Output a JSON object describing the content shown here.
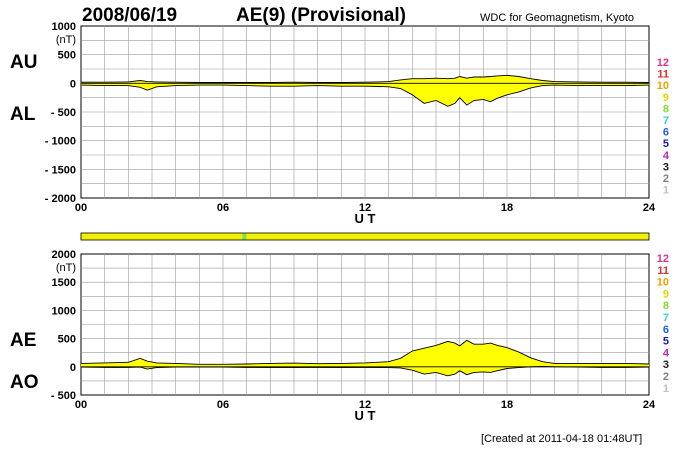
{
  "header": {
    "date": "2008/06/19",
    "title": "AE(9)  (Provisional)",
    "institution": "WDC for Geomagnetism, Kyoto"
  },
  "footer": {
    "created": "[Created at 2011-04-18 01:48UT]"
  },
  "colors": {
    "fill": "#ffff00",
    "stripe": "#f0f000",
    "stripe_marker": "#80e050",
    "grid": "#9a9a9a"
  },
  "chart_data": [
    {
      "type": "area",
      "name_labels": [
        "AU",
        "AL"
      ],
      "unit": "(nT)",
      "xlabel": "U T",
      "xlim": [
        0,
        24
      ],
      "x_ticks": [
        0,
        6,
        12,
        18,
        24
      ],
      "x_tick_labels": [
        "00",
        "06",
        "12",
        "18",
        "24"
      ],
      "x_minor_step": 1,
      "ylim": [
        -2000,
        1000
      ],
      "y_tick_labels": [
        {
          "value": 1000,
          "label": "1000"
        },
        {
          "value": 500,
          "label": "500"
        },
        {
          "value": 0,
          "label": "0"
        },
        {
          "value": -500,
          "label": "- 500"
        },
        {
          "value": -1000,
          "label": "- 1000"
        },
        {
          "value": -1500,
          "label": "- 1500"
        },
        {
          "value": -2000,
          "label": "- 2000"
        }
      ],
      "y_minor_step": 250,
      "grid": true,
      "x": [
        0,
        1,
        2,
        2.5,
        2.8,
        3.2,
        4,
        5,
        6,
        7,
        8,
        9,
        10,
        11,
        12,
        13,
        13.5,
        14,
        14.5,
        15,
        15.5,
        15.8,
        16,
        16.3,
        16.6,
        17,
        17.3,
        17.6,
        18,
        18.5,
        19,
        19.5,
        20,
        21,
        22,
        23,
        24
      ],
      "series": [
        {
          "name": "AU",
          "values": [
            20,
            20,
            25,
            50,
            30,
            25,
            20,
            15,
            15,
            15,
            15,
            20,
            15,
            15,
            20,
            30,
            60,
            80,
            80,
            90,
            80,
            90,
            120,
            90,
            110,
            110,
            120,
            130,
            140,
            120,
            80,
            50,
            30,
            25,
            20,
            20,
            15
          ]
        },
        {
          "name": "AL",
          "values": [
            -30,
            -40,
            -40,
            -70,
            -120,
            -60,
            -40,
            -30,
            -30,
            -40,
            -50,
            -50,
            -40,
            -50,
            -50,
            -60,
            -90,
            -200,
            -350,
            -300,
            -400,
            -350,
            -250,
            -380,
            -300,
            -280,
            -320,
            -260,
            -200,
            -150,
            -80,
            -40,
            -30,
            -40,
            -40,
            -40,
            -30
          ]
        }
      ]
    },
    {
      "type": "area",
      "name_labels": [
        "AE",
        "AO"
      ],
      "unit": "(nT)",
      "xlabel": "U T",
      "xlim": [
        0,
        24
      ],
      "x_ticks": [
        0,
        6,
        12,
        18,
        24
      ],
      "x_tick_labels": [
        "00",
        "06",
        "12",
        "18",
        "24"
      ],
      "x_minor_step": 1,
      "ylim": [
        -500,
        2000
      ],
      "y_tick_labels": [
        {
          "value": 2000,
          "label": "2000"
        },
        {
          "value": 1500,
          "label": "1500"
        },
        {
          "value": 1000,
          "label": "1000"
        },
        {
          "value": 500,
          "label": "500"
        },
        {
          "value": 0,
          "label": "0"
        },
        {
          "value": -500,
          "label": "- 500"
        }
      ],
      "y_minor_step": 250,
      "grid": true,
      "x": [
        0,
        1,
        2,
        2.5,
        2.8,
        3.2,
        4,
        5,
        6,
        7,
        8,
        9,
        10,
        11,
        12,
        13,
        13.5,
        14,
        14.5,
        15,
        15.5,
        15.8,
        16,
        16.3,
        16.6,
        17,
        17.3,
        17.6,
        18,
        18.5,
        19,
        19.5,
        20,
        21,
        22,
        23,
        24
      ],
      "series": [
        {
          "name": "AE",
          "values": [
            60,
            70,
            80,
            150,
            100,
            70,
            60,
            45,
            45,
            50,
            60,
            65,
            55,
            60,
            70,
            90,
            150,
            280,
            330,
            380,
            450,
            420,
            370,
            470,
            400,
            400,
            420,
            380,
            340,
            260,
            160,
            90,
            60,
            60,
            60,
            60,
            50
          ]
        },
        {
          "name": "AO",
          "values": [
            -5,
            -10,
            -10,
            -5,
            -40,
            -15,
            -5,
            -5,
            -5,
            -10,
            -15,
            -15,
            -10,
            -15,
            -10,
            -15,
            -20,
            -60,
            -130,
            -100,
            -160,
            -130,
            -70,
            -140,
            -100,
            -90,
            -100,
            -70,
            -30,
            -15,
            0,
            5,
            0,
            -5,
            -10,
            -10,
            -5
          ]
        }
      ]
    }
  ],
  "legend_numbers": [
    {
      "label": "12",
      "color": "#e0308a"
    },
    {
      "label": "11",
      "color": "#e03030"
    },
    {
      "label": "10",
      "color": "#f0a000"
    },
    {
      "label": "9",
      "color": "#e0d800"
    },
    {
      "label": "8",
      "color": "#80e030"
    },
    {
      "label": "7",
      "color": "#30d0e0"
    },
    {
      "label": "6",
      "color": "#2060e0"
    },
    {
      "label": "5",
      "color": "#2020a0"
    },
    {
      "label": "4",
      "color": "#c020c0"
    },
    {
      "label": "3",
      "color": "#202020"
    },
    {
      "label": "2",
      "color": "#808080"
    },
    {
      "label": "1",
      "color": "#c0c0c0"
    }
  ],
  "stripe_marker_hour": 6.9
}
